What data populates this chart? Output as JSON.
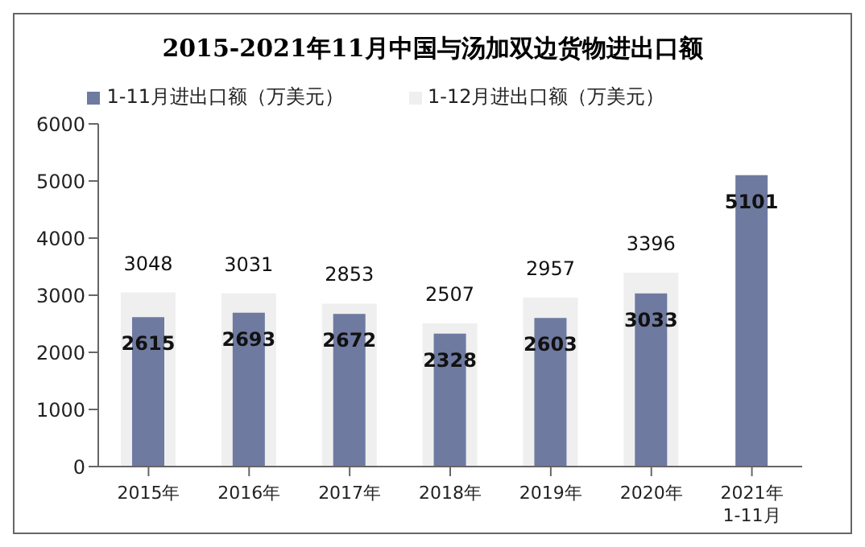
{
  "chart_data": {
    "type": "bar",
    "title": "2015-2021年11月中国与汤加双边货物进出口额",
    "categories": [
      "2015年",
      "2016年",
      "2017年",
      "2018年",
      "2019年",
      "2020年",
      "2021年\n1-11月"
    ],
    "series": [
      {
        "name": "1-12月进出口额（万美元）",
        "color": "#efefef",
        "values": [
          3048,
          3031,
          2853,
          2507,
          2957,
          3396,
          null
        ]
      },
      {
        "name": "1-11月进出口额（万美元）",
        "color": "#6f7aa1",
        "values": [
          2615,
          2693,
          2672,
          2328,
          2603,
          3033,
          5101
        ]
      }
    ],
    "ylim": [
      0,
      6000
    ],
    "yticks": [
      0,
      1000,
      2000,
      3000,
      4000,
      5000,
      6000
    ],
    "grid": false,
    "legend": "top",
    "data_labels": true
  }
}
